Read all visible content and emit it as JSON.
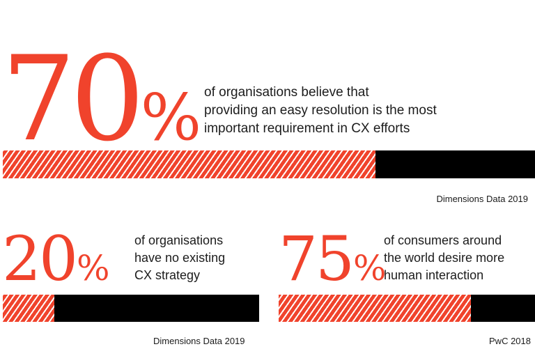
{
  "chart_data": {
    "type": "bar",
    "title": "",
    "colors": {
      "accent": "#f0432c",
      "track": "#000000",
      "text": "#1c1c1c"
    },
    "stats": [
      {
        "number": "70",
        "percent_sign": "%",
        "value": 70,
        "description": [
          "of organisations believe that",
          "providing an easy resolution is the most",
          "important requirement in CX efforts"
        ],
        "source": "Dimensions Data 2019"
      },
      {
        "number": "20",
        "percent_sign": "%",
        "value": 20,
        "description": [
          "of organisations",
          "have no existing",
          "CX strategy"
        ],
        "source": "Dimensions Data 2019"
      },
      {
        "number": "75",
        "percent_sign": "%",
        "value": 75,
        "description": [
          "of consumers around",
          "the world desire more",
          "human interaction"
        ],
        "source": "PwC 2018"
      }
    ]
  }
}
